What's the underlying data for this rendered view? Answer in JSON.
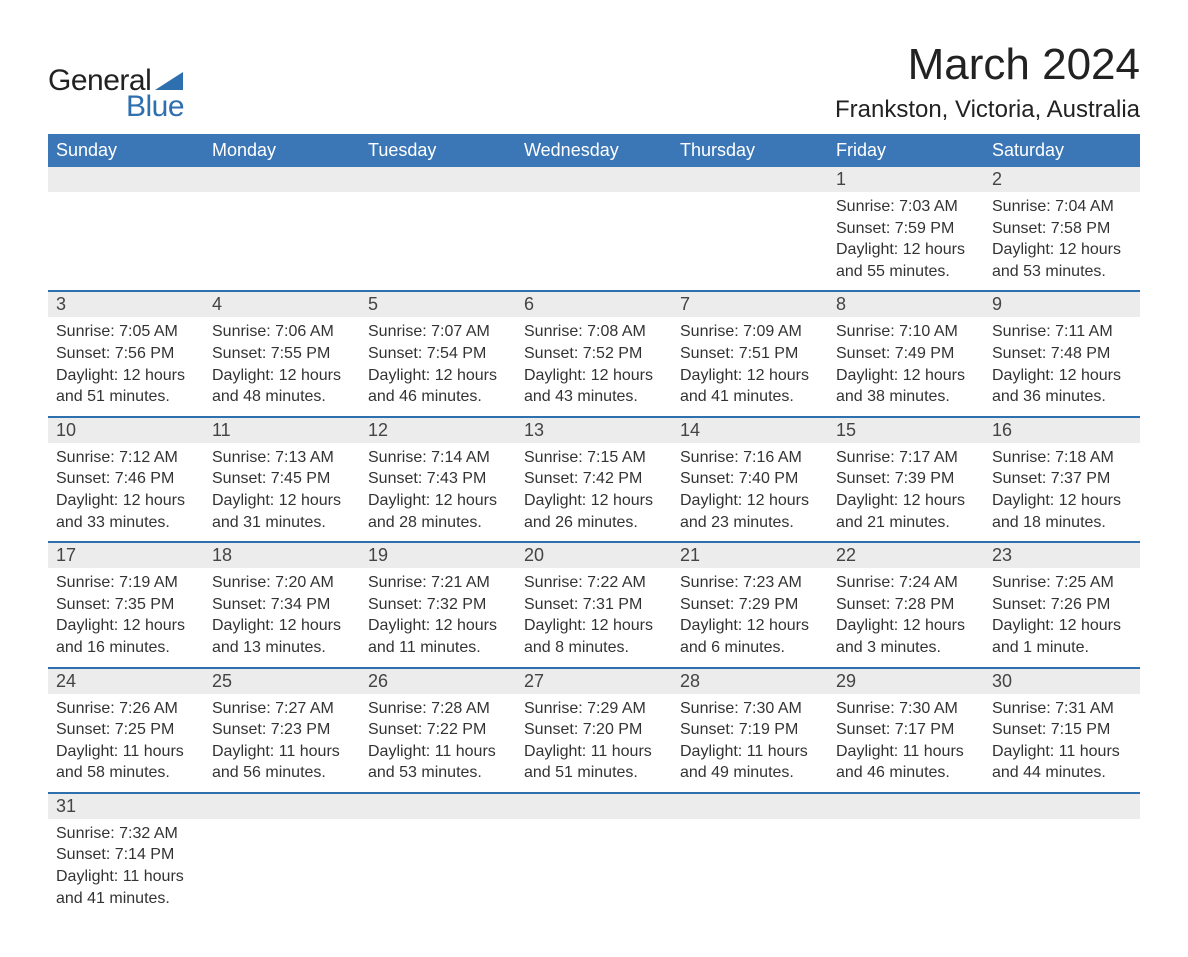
{
  "logo": {
    "text_general": "General",
    "text_blue": "Blue",
    "accent_color": "#2e6fb0"
  },
  "header": {
    "month_title": "March 2024",
    "location": "Frankston, Victoria, Australia"
  },
  "colors": {
    "header_bg": "#3b77b7",
    "header_text": "#ffffff",
    "daynum_bg": "#ececec",
    "row_divider": "#2e6fb0",
    "body_text": "#333333"
  },
  "weekdays": [
    "Sunday",
    "Monday",
    "Tuesday",
    "Wednesday",
    "Thursday",
    "Friday",
    "Saturday"
  ],
  "weeks": [
    {
      "days": [
        null,
        null,
        null,
        null,
        null,
        {
          "num": "1",
          "sunrise": "Sunrise: 7:03 AM",
          "sunset": "Sunset: 7:59 PM",
          "daylight1": "Daylight: 12 hours",
          "daylight2": "and 55 minutes."
        },
        {
          "num": "2",
          "sunrise": "Sunrise: 7:04 AM",
          "sunset": "Sunset: 7:58 PM",
          "daylight1": "Daylight: 12 hours",
          "daylight2": "and 53 minutes."
        }
      ]
    },
    {
      "days": [
        {
          "num": "3",
          "sunrise": "Sunrise: 7:05 AM",
          "sunset": "Sunset: 7:56 PM",
          "daylight1": "Daylight: 12 hours",
          "daylight2": "and 51 minutes."
        },
        {
          "num": "4",
          "sunrise": "Sunrise: 7:06 AM",
          "sunset": "Sunset: 7:55 PM",
          "daylight1": "Daylight: 12 hours",
          "daylight2": "and 48 minutes."
        },
        {
          "num": "5",
          "sunrise": "Sunrise: 7:07 AM",
          "sunset": "Sunset: 7:54 PM",
          "daylight1": "Daylight: 12 hours",
          "daylight2": "and 46 minutes."
        },
        {
          "num": "6",
          "sunrise": "Sunrise: 7:08 AM",
          "sunset": "Sunset: 7:52 PM",
          "daylight1": "Daylight: 12 hours",
          "daylight2": "and 43 minutes."
        },
        {
          "num": "7",
          "sunrise": "Sunrise: 7:09 AM",
          "sunset": "Sunset: 7:51 PM",
          "daylight1": "Daylight: 12 hours",
          "daylight2": "and 41 minutes."
        },
        {
          "num": "8",
          "sunrise": "Sunrise: 7:10 AM",
          "sunset": "Sunset: 7:49 PM",
          "daylight1": "Daylight: 12 hours",
          "daylight2": "and 38 minutes."
        },
        {
          "num": "9",
          "sunrise": "Sunrise: 7:11 AM",
          "sunset": "Sunset: 7:48 PM",
          "daylight1": "Daylight: 12 hours",
          "daylight2": "and 36 minutes."
        }
      ]
    },
    {
      "days": [
        {
          "num": "10",
          "sunrise": "Sunrise: 7:12 AM",
          "sunset": "Sunset: 7:46 PM",
          "daylight1": "Daylight: 12 hours",
          "daylight2": "and 33 minutes."
        },
        {
          "num": "11",
          "sunrise": "Sunrise: 7:13 AM",
          "sunset": "Sunset: 7:45 PM",
          "daylight1": "Daylight: 12 hours",
          "daylight2": "and 31 minutes."
        },
        {
          "num": "12",
          "sunrise": "Sunrise: 7:14 AM",
          "sunset": "Sunset: 7:43 PM",
          "daylight1": "Daylight: 12 hours",
          "daylight2": "and 28 minutes."
        },
        {
          "num": "13",
          "sunrise": "Sunrise: 7:15 AM",
          "sunset": "Sunset: 7:42 PM",
          "daylight1": "Daylight: 12 hours",
          "daylight2": "and 26 minutes."
        },
        {
          "num": "14",
          "sunrise": "Sunrise: 7:16 AM",
          "sunset": "Sunset: 7:40 PM",
          "daylight1": "Daylight: 12 hours",
          "daylight2": "and 23 minutes."
        },
        {
          "num": "15",
          "sunrise": "Sunrise: 7:17 AM",
          "sunset": "Sunset: 7:39 PM",
          "daylight1": "Daylight: 12 hours",
          "daylight2": "and 21 minutes."
        },
        {
          "num": "16",
          "sunrise": "Sunrise: 7:18 AM",
          "sunset": "Sunset: 7:37 PM",
          "daylight1": "Daylight: 12 hours",
          "daylight2": "and 18 minutes."
        }
      ]
    },
    {
      "days": [
        {
          "num": "17",
          "sunrise": "Sunrise: 7:19 AM",
          "sunset": "Sunset: 7:35 PM",
          "daylight1": "Daylight: 12 hours",
          "daylight2": "and 16 minutes."
        },
        {
          "num": "18",
          "sunrise": "Sunrise: 7:20 AM",
          "sunset": "Sunset: 7:34 PM",
          "daylight1": "Daylight: 12 hours",
          "daylight2": "and 13 minutes."
        },
        {
          "num": "19",
          "sunrise": "Sunrise: 7:21 AM",
          "sunset": "Sunset: 7:32 PM",
          "daylight1": "Daylight: 12 hours",
          "daylight2": "and 11 minutes."
        },
        {
          "num": "20",
          "sunrise": "Sunrise: 7:22 AM",
          "sunset": "Sunset: 7:31 PM",
          "daylight1": "Daylight: 12 hours",
          "daylight2": "and 8 minutes."
        },
        {
          "num": "21",
          "sunrise": "Sunrise: 7:23 AM",
          "sunset": "Sunset: 7:29 PM",
          "daylight1": "Daylight: 12 hours",
          "daylight2": "and 6 minutes."
        },
        {
          "num": "22",
          "sunrise": "Sunrise: 7:24 AM",
          "sunset": "Sunset: 7:28 PM",
          "daylight1": "Daylight: 12 hours",
          "daylight2": "and 3 minutes."
        },
        {
          "num": "23",
          "sunrise": "Sunrise: 7:25 AM",
          "sunset": "Sunset: 7:26 PM",
          "daylight1": "Daylight: 12 hours",
          "daylight2": "and 1 minute."
        }
      ]
    },
    {
      "days": [
        {
          "num": "24",
          "sunrise": "Sunrise: 7:26 AM",
          "sunset": "Sunset: 7:25 PM",
          "daylight1": "Daylight: 11 hours",
          "daylight2": "and 58 minutes."
        },
        {
          "num": "25",
          "sunrise": "Sunrise: 7:27 AM",
          "sunset": "Sunset: 7:23 PM",
          "daylight1": "Daylight: 11 hours",
          "daylight2": "and 56 minutes."
        },
        {
          "num": "26",
          "sunrise": "Sunrise: 7:28 AM",
          "sunset": "Sunset: 7:22 PM",
          "daylight1": "Daylight: 11 hours",
          "daylight2": "and 53 minutes."
        },
        {
          "num": "27",
          "sunrise": "Sunrise: 7:29 AM",
          "sunset": "Sunset: 7:20 PM",
          "daylight1": "Daylight: 11 hours",
          "daylight2": "and 51 minutes."
        },
        {
          "num": "28",
          "sunrise": "Sunrise: 7:30 AM",
          "sunset": "Sunset: 7:19 PM",
          "daylight1": "Daylight: 11 hours",
          "daylight2": "and 49 minutes."
        },
        {
          "num": "29",
          "sunrise": "Sunrise: 7:30 AM",
          "sunset": "Sunset: 7:17 PM",
          "daylight1": "Daylight: 11 hours",
          "daylight2": "and 46 minutes."
        },
        {
          "num": "30",
          "sunrise": "Sunrise: 7:31 AM",
          "sunset": "Sunset: 7:15 PM",
          "daylight1": "Daylight: 11 hours",
          "daylight2": "and 44 minutes."
        }
      ]
    },
    {
      "days": [
        {
          "num": "31",
          "sunrise": "Sunrise: 7:32 AM",
          "sunset": "Sunset: 7:14 PM",
          "daylight1": "Daylight: 11 hours",
          "daylight2": "and 41 minutes."
        },
        null,
        null,
        null,
        null,
        null,
        null
      ]
    }
  ]
}
